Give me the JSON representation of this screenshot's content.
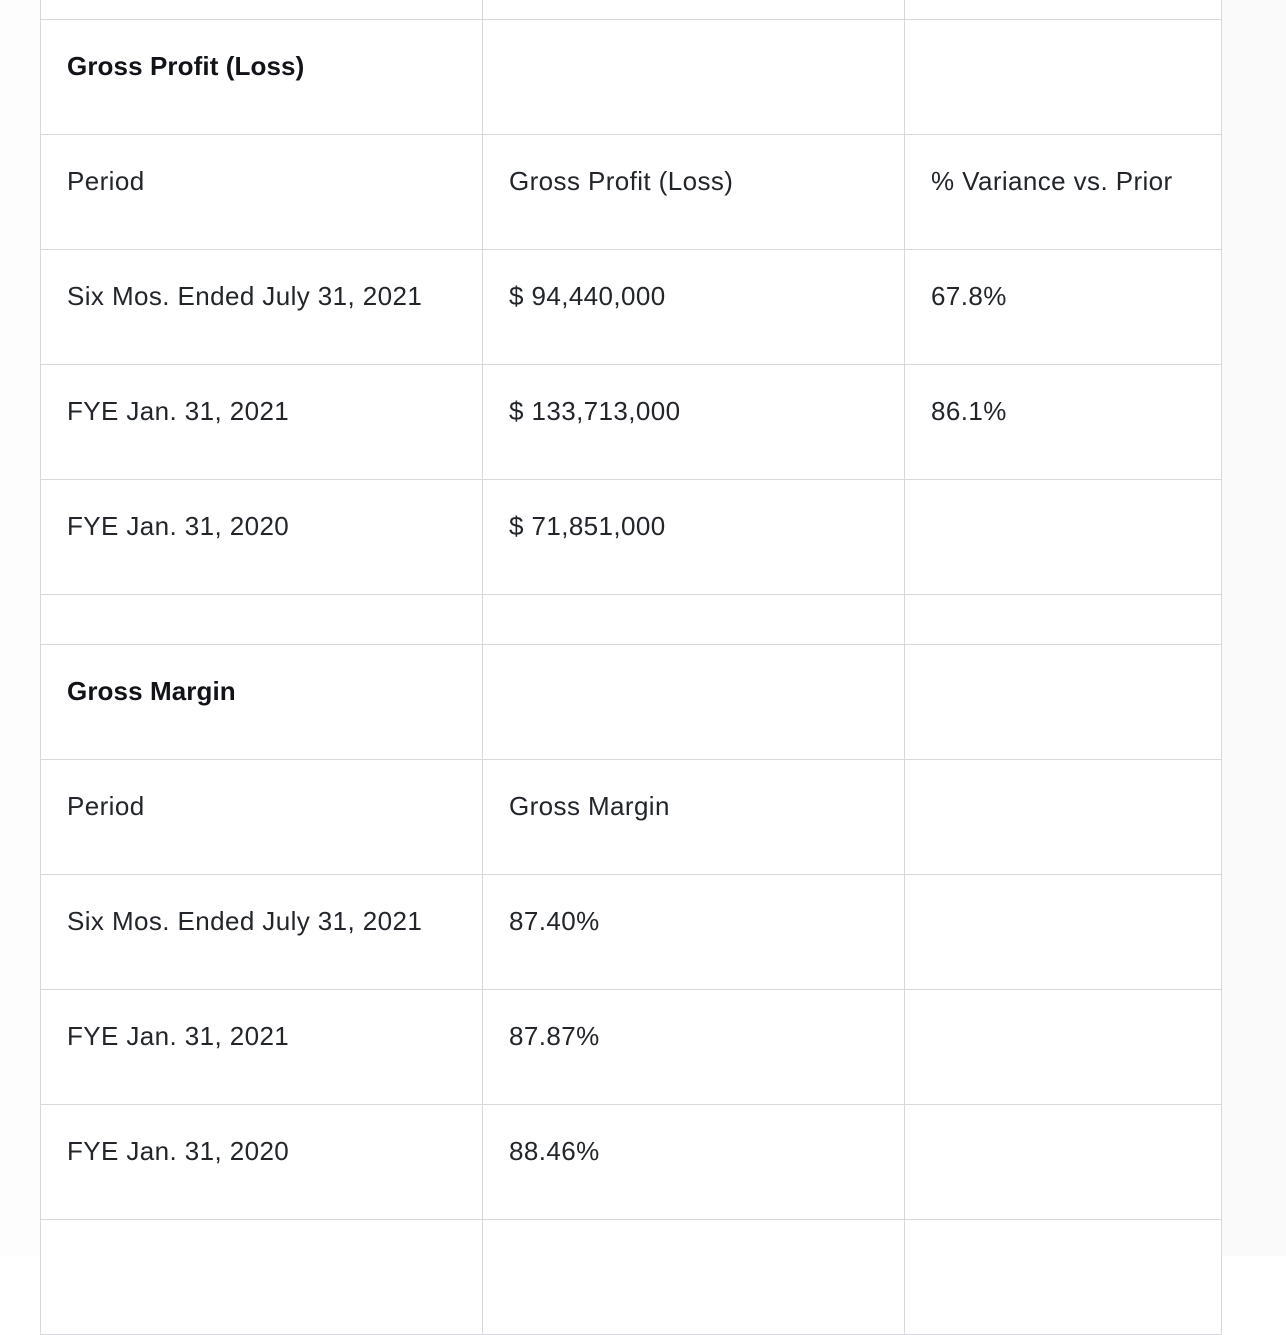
{
  "gross_profit_section": {
    "heading": "Gross Profit (Loss)",
    "columns": [
      "Period",
      "Gross Profit (Loss)",
      "% Variance vs. Prior"
    ],
    "rows": [
      {
        "period": "Six Mos. Ended July 31, 2021",
        "value": "$ 94,440,000",
        "variance": "67.8%"
      },
      {
        "period": "FYE Jan. 31, 2021",
        "value": "$ 133,713,000",
        "variance": "86.1%"
      },
      {
        "period": "FYE Jan. 31, 2020",
        "value": "$ 71,851,000",
        "variance": ""
      }
    ]
  },
  "gross_margin_section": {
    "heading": "Gross Margin",
    "columns": [
      "Period",
      "Gross Margin",
      ""
    ],
    "rows": [
      {
        "period": "Six Mos. Ended July 31, 2021",
        "value": "87.40%"
      },
      {
        "period": "FYE Jan. 31, 2021",
        "value": "87.87%"
      },
      {
        "period": "FYE Jan. 31, 2020",
        "value": "88.46%"
      }
    ]
  }
}
